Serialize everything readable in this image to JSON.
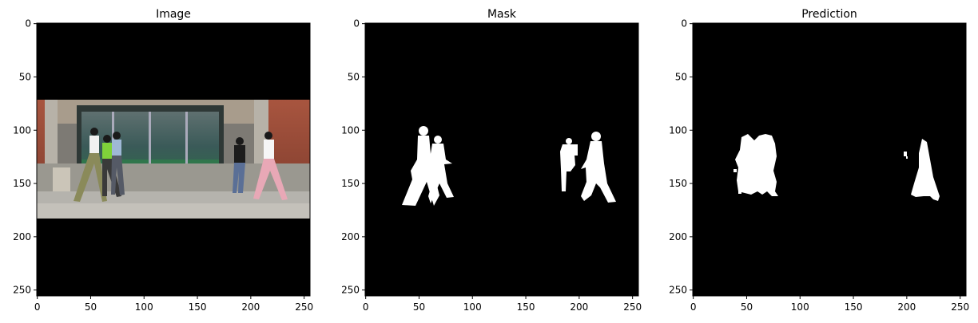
{
  "panels": [
    {
      "title": "Image",
      "kind": "photo"
    },
    {
      "title": "Mask",
      "kind": "mask"
    },
    {
      "title": "Prediction",
      "kind": "prediction"
    }
  ],
  "axes": {
    "x_ticks": [
      0,
      50,
      100,
      150,
      200,
      250
    ],
    "y_ticks": [
      0,
      50,
      100,
      150,
      200,
      250
    ],
    "extent": [
      0,
      256
    ]
  },
  "colors": {
    "background": "#000000",
    "foreground": "#ffffff",
    "frame": "#000000"
  }
}
